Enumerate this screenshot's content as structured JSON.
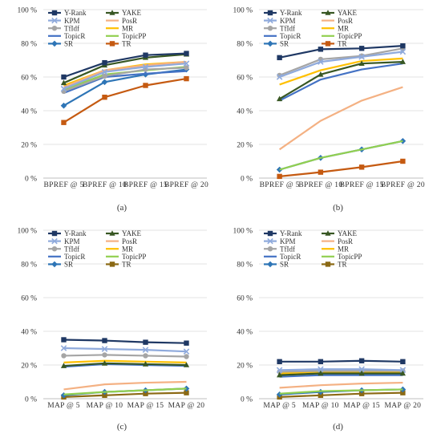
{
  "chart_data": [
    {
      "type": "line",
      "caption": "(a)",
      "categories": [
        "BPREF @ 5",
        "BPREF @ 10",
        "BPREF @ 15",
        "BPREF @ 20"
      ],
      "y_ticks": [
        "0 %",
        "20 %",
        "40 %",
        "60 %",
        "80 %",
        "100 %"
      ],
      "ylim": [
        0,
        100
      ],
      "grid": true,
      "legend": "top-left",
      "series": [
        {
          "name": "Y-Rank",
          "color": "#1f3864",
          "marker": "square",
          "values": [
            60,
            68.5,
            73,
            74
          ]
        },
        {
          "name": "YAKE",
          "color": "#385723",
          "marker": "triangle",
          "values": [
            56.5,
            67,
            71.5,
            73.5
          ]
        },
        {
          "name": "KPM",
          "color": "#8faadc",
          "marker": "x",
          "values": [
            53,
            63,
            66,
            68
          ]
        },
        {
          "name": "PosR",
          "color": "#f4b183",
          "marker": "none",
          "values": [
            54,
            64,
            67,
            69
          ]
        },
        {
          "name": "TfIdf",
          "color": "#a5a5a5",
          "marker": "circle",
          "values": [
            51.5,
            60.5,
            64.5,
            65.5
          ]
        },
        {
          "name": "MR",
          "color": "#ffc000",
          "marker": "none",
          "values": [
            55,
            64,
            67.5,
            69
          ]
        },
        {
          "name": "TopicR",
          "color": "#4472c4",
          "marker": "none",
          "values": [
            50.5,
            60,
            62,
            63.5
          ]
        },
        {
          "name": "TopicPP",
          "color": "#92d050",
          "marker": "none",
          "values": [
            52.5,
            61.5,
            64,
            66
          ]
        },
        {
          "name": "SR",
          "color": "#2e75b6",
          "marker": "diamond",
          "values": [
            43,
            57,
            61.5,
            64.5
          ]
        },
        {
          "name": "TR",
          "color": "#c55a11",
          "marker": "square",
          "values": [
            33,
            48,
            55,
            59
          ]
        }
      ]
    },
    {
      "type": "line",
      "caption": "(b)",
      "categories": [
        "BPREF @ 5",
        "BPREF @ 10",
        "BPREF @ 15",
        "BPREF @ 20"
      ],
      "y_ticks": [
        "0 %",
        "20 %",
        "40 %",
        "60 %",
        "80 %",
        "100 %"
      ],
      "ylim": [
        0,
        100
      ],
      "grid": true,
      "legend": "top-left",
      "series": [
        {
          "name": "Y-Rank",
          "color": "#1f3864",
          "marker": "square",
          "values": [
            71.5,
            76.5,
            77,
            78.5
          ]
        },
        {
          "name": "YAKE",
          "color": "#385723",
          "marker": "triangle",
          "values": [
            47,
            61.5,
            68,
            69
          ]
        },
        {
          "name": "KPM",
          "color": "#8faadc",
          "marker": "x",
          "values": [
            60,
            69,
            72,
            75
          ]
        },
        {
          "name": "PosR",
          "color": "#f4b183",
          "marker": "none",
          "values": [
            17,
            34,
            46,
            54
          ]
        },
        {
          "name": "TfIdf",
          "color": "#a5a5a5",
          "marker": "circle",
          "values": [
            61,
            70.5,
            72.5,
            77
          ]
        },
        {
          "name": "MR",
          "color": "#ffc000",
          "marker": "none",
          "values": [
            55.5,
            64,
            69.5,
            71
          ]
        },
        {
          "name": "TopicR",
          "color": "#4472c4",
          "marker": "none",
          "values": [
            46,
            58.5,
            64.5,
            68
          ]
        },
        {
          "name": "TopicPP",
          "color": "#92d050",
          "marker": "none",
          "values": [
            5,
            12,
            17,
            22
          ]
        },
        {
          "name": "SR",
          "color": "#2e75b6",
          "marker": "diamond",
          "values": [
            5,
            12,
            17,
            22
          ]
        },
        {
          "name": "TR",
          "color": "#c55a11",
          "marker": "square",
          "values": [
            1,
            3.5,
            6.5,
            10
          ]
        }
      ]
    },
    {
      "type": "line",
      "caption": "(c)",
      "categories": [
        "MAP @ 5",
        "MAP @ 10",
        "MAP @ 15",
        "MAP @ 20"
      ],
      "y_ticks": [
        "0 %",
        "20 %",
        "40 %",
        "60 %",
        "80 %",
        "100 %"
      ],
      "ylim": [
        0,
        100
      ],
      "grid": true,
      "legend": "top-left",
      "series": [
        {
          "name": "Y-Rank",
          "color": "#1f3864",
          "marker": "square",
          "values": [
            35,
            34.5,
            33.5,
            33
          ]
        },
        {
          "name": "YAKE",
          "color": "#385723",
          "marker": "triangle",
          "values": [
            19.5,
            21,
            20.5,
            20
          ]
        },
        {
          "name": "KPM",
          "color": "#8faadc",
          "marker": "x",
          "values": [
            30,
            29.5,
            29,
            28
          ]
        },
        {
          "name": "PosR",
          "color": "#f4b183",
          "marker": "none",
          "values": [
            5.5,
            8.5,
            9.5,
            10
          ]
        },
        {
          "name": "TfIdf",
          "color": "#a5a5a5",
          "marker": "circle",
          "values": [
            25.5,
            26,
            25.5,
            25
          ]
        },
        {
          "name": "MR",
          "color": "#ffc000",
          "marker": "none",
          "values": [
            21.5,
            22.5,
            22,
            21.5
          ]
        },
        {
          "name": "TopicR",
          "color": "#4472c4",
          "marker": "none",
          "values": [
            19,
            20.5,
            20,
            19.5
          ]
        },
        {
          "name": "TopicPP",
          "color": "#92d050",
          "marker": "none",
          "values": [
            2.5,
            4,
            5,
            6
          ]
        },
        {
          "name": "SR",
          "color": "#2e75b6",
          "marker": "diamond",
          "values": [
            2,
            4,
            5,
            6
          ]
        },
        {
          "name": "TR",
          "color": "#8b6914",
          "marker": "square",
          "values": [
            1,
            2,
            3,
            3.5
          ]
        }
      ]
    },
    {
      "type": "line",
      "caption": "(d)",
      "categories": [
        "MAP @ 5",
        "MAP @ 10",
        "MAP @ 15",
        "MAP @ 20"
      ],
      "y_ticks": [
        "0 %",
        "20 %",
        "40 %",
        "60 %",
        "80 %",
        "100 %"
      ],
      "ylim": [
        0,
        100
      ],
      "grid": true,
      "legend": "top-left",
      "series": [
        {
          "name": "Y-Rank",
          "color": "#1f3864",
          "marker": "square",
          "values": [
            22,
            22,
            22.5,
            22
          ]
        },
        {
          "name": "YAKE",
          "color": "#385723",
          "marker": "triangle",
          "values": [
            14,
            15,
            15,
            15
          ]
        },
        {
          "name": "KPM",
          "color": "#8faadc",
          "marker": "x",
          "values": [
            17,
            17.5,
            17.5,
            17
          ]
        },
        {
          "name": "PosR",
          "color": "#f4b183",
          "marker": "none",
          "values": [
            6.5,
            8,
            9,
            9.5
          ]
        },
        {
          "name": "TfIdf",
          "color": "#a5a5a5",
          "marker": "circle",
          "values": [
            16,
            16.5,
            16.5,
            16.5
          ]
        },
        {
          "name": "MR",
          "color": "#ffc000",
          "marker": "none",
          "values": [
            15,
            16,
            16,
            16
          ]
        },
        {
          "name": "TopicR",
          "color": "#4472c4",
          "marker": "none",
          "values": [
            13,
            14,
            14,
            14
          ]
        },
        {
          "name": "TopicPP",
          "color": "#92d050",
          "marker": "none",
          "values": [
            3,
            4.5,
            5,
            5.5
          ]
        },
        {
          "name": "SR",
          "color": "#2e75b6",
          "marker": "diamond",
          "values": [
            2.5,
            4,
            5,
            5.5
          ]
        },
        {
          "name": "TR",
          "color": "#8b6914",
          "marker": "square",
          "values": [
            1,
            2,
            3,
            3.5
          ]
        }
      ]
    }
  ]
}
